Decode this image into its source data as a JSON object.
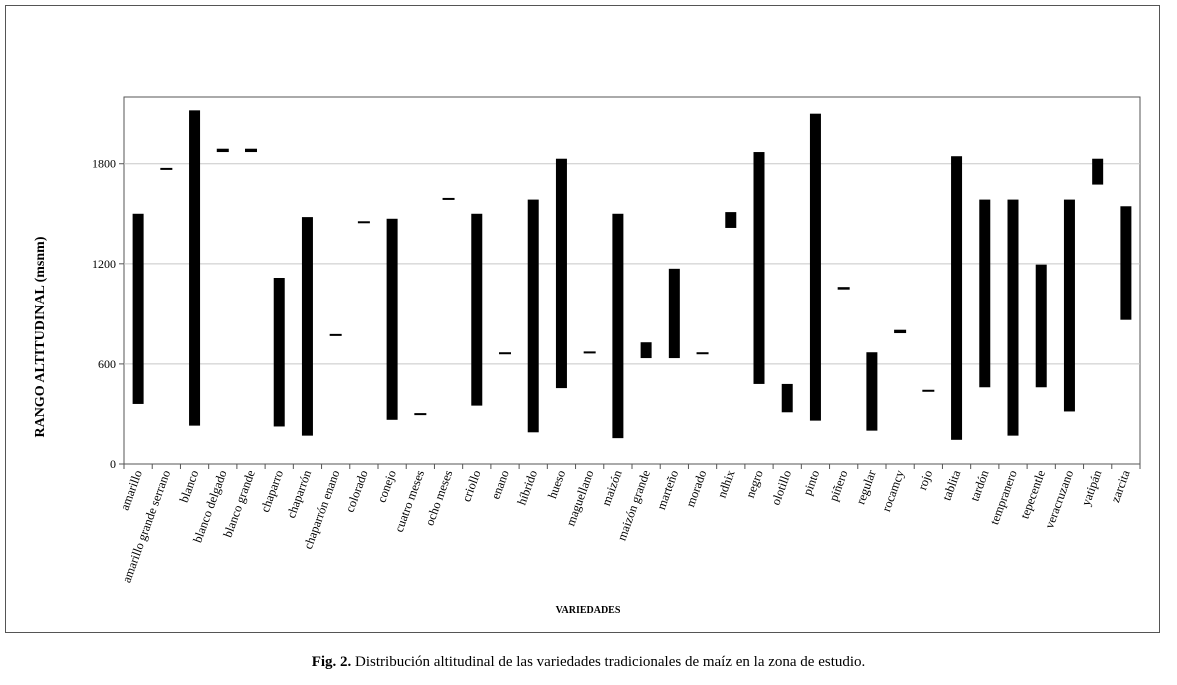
{
  "caption": {
    "label": "Fig. 2.",
    "text": " Distribución altitudinal de las variedades tradicionales de maíz en la zona de estudio."
  },
  "chart_data": {
    "type": "bar",
    "subtype": "floating-range",
    "title": "",
    "xlabel": "VARIEDADES",
    "ylabel": "RANGO ALTITUDINAL (msnm)",
    "ylim": [
      0,
      2200
    ],
    "yticks": [
      0,
      600,
      1200,
      1800
    ],
    "grid": true,
    "legend": "none",
    "bar_color": "#000000",
    "categories": [
      "amarillo",
      "amarillo grande serrano",
      "blanco",
      "blanco delgado",
      "blanco grande",
      "chaparro",
      "chaparrón",
      "chaparrón enano",
      "colorado",
      "conejo",
      "cuatro meses",
      "ocho meses",
      "criollo",
      "enano",
      "híbrido",
      "hueso",
      "maguellano",
      "maizón",
      "maizón grande",
      "marteño",
      "morado",
      "ndhix",
      "negro",
      "olotillo",
      "pinto",
      "piñero",
      "regular",
      "rocamcy",
      "rojo",
      "tablita",
      "tardón",
      "tempranero",
      "tepecentle",
      "veracruzano",
      "yatipán",
      "zarcita"
    ],
    "ranges": [
      [
        360,
        1500
      ],
      [
        1765,
        1775
      ],
      [
        230,
        2120
      ],
      [
        1870,
        1890
      ],
      [
        1870,
        1890
      ],
      [
        225,
        1115
      ],
      [
        170,
        1480
      ],
      [
        770,
        780
      ],
      [
        1445,
        1455
      ],
      [
        265,
        1470
      ],
      [
        295,
        305
      ],
      [
        1585,
        1595
      ],
      [
        350,
        1500
      ],
      [
        660,
        670
      ],
      [
        190,
        1585
      ],
      [
        455,
        1830
      ],
      [
        665,
        675
      ],
      [
        155,
        1500
      ],
      [
        635,
        730
      ],
      [
        635,
        1170
      ],
      [
        660,
        670
      ],
      [
        1415,
        1510
      ],
      [
        480,
        1870
      ],
      [
        310,
        480
      ],
      [
        260,
        2100
      ],
      [
        1045,
        1060
      ],
      [
        200,
        670
      ],
      [
        785,
        805
      ],
      [
        435,
        445
      ],
      [
        145,
        1845
      ],
      [
        460,
        1585
      ],
      [
        170,
        1585
      ],
      [
        460,
        1195
      ],
      [
        315,
        1585
      ],
      [
        1675,
        1830
      ],
      [
        865,
        1545
      ]
    ]
  }
}
